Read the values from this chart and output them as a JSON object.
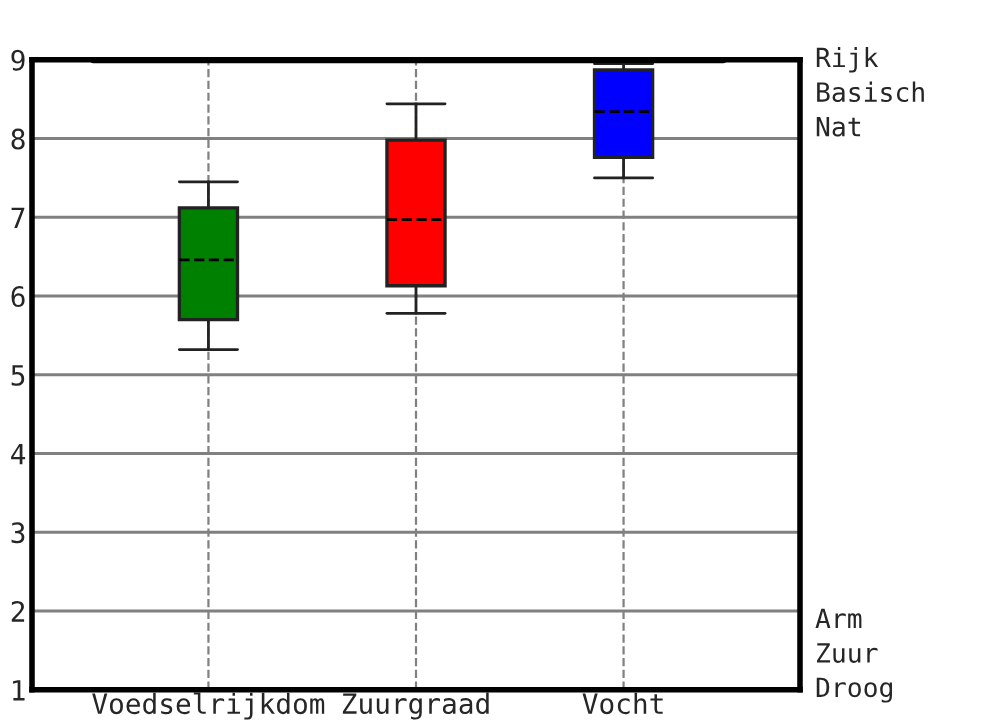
{
  "chart_data": {
    "type": "box",
    "categories": [
      "Voedselrijkdom",
      "Zuurgraad",
      "Vocht"
    ],
    "boxes": [
      {
        "low": 5.32,
        "q1": 5.7,
        "median": 6.46,
        "q3": 7.12,
        "high": 7.45
      },
      {
        "low": 5.78,
        "q1": 6.13,
        "median": 6.97,
        "q3": 7.98,
        "high": 8.44
      },
      {
        "low": 7.5,
        "q1": 7.76,
        "median": 8.34,
        "q3": 8.87,
        "high": 8.95
      }
    ],
    "colors": [
      "#008000",
      "#ff0000",
      "#0000ff"
    ],
    "ylim": [
      1,
      9
    ],
    "yticks": [
      1,
      2,
      3,
      4,
      5,
      6,
      7,
      8,
      9
    ],
    "grid": true,
    "line_style": "dashed",
    "ref_lines": [
      {
        "axis": "y",
        "value": 9,
        "color": "#000000"
      }
    ],
    "annotations": [
      "Rijk",
      "Basisch",
      "Nat",
      "Arm",
      "Zuur",
      "Droog"
    ]
  }
}
